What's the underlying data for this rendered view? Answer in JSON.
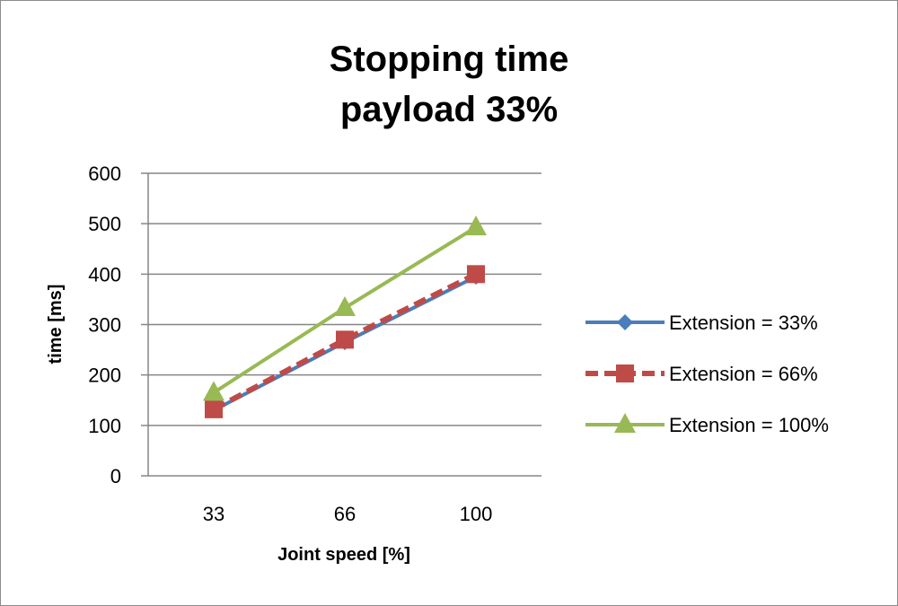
{
  "chart_data": {
    "type": "line",
    "title": [
      "Stopping time",
      "payload 33%"
    ],
    "xlabel": "Joint speed [%]",
    "ylabel": "time [ms]",
    "categories": [
      "33",
      "66",
      "100"
    ],
    "ylim": [
      0,
      600
    ],
    "yticks": [
      "0",
      "100",
      "200",
      "300",
      "400",
      "500",
      "600"
    ],
    "grid": true,
    "legend_position": "right",
    "series": [
      {
        "name": "Extension = 33%",
        "values": [
          130,
          265,
          395
        ],
        "color": "#4a7ebb",
        "marker": "diamond",
        "dash": false
      },
      {
        "name": "Extension = 66%",
        "values": [
          132,
          270,
          400
        ],
        "color": "#be4b48",
        "marker": "square",
        "dash": true
      },
      {
        "name": "Extension = 100%",
        "values": [
          165,
          333,
          493
        ],
        "color": "#98b954",
        "marker": "triangle",
        "dash": false
      }
    ]
  }
}
